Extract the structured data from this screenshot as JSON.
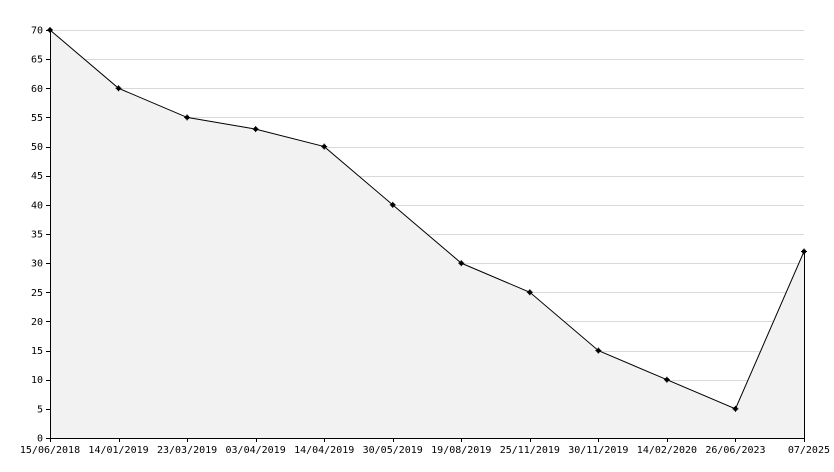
{
  "chart_data": {
    "type": "area",
    "title": "",
    "xlabel": "",
    "ylabel": "",
    "categories": [
      "15/06/2018",
      "14/01/2019",
      "23/03/2019",
      "03/04/2019",
      "14/04/2019",
      "30/05/2019",
      "19/08/2019",
      "25/11/2019",
      "30/11/2019",
      "14/02/2020",
      "26/06/2023",
      "07/2025"
    ],
    "values": [
      70,
      60,
      55,
      53,
      50,
      40,
      30,
      25,
      15,
      10,
      5,
      32
    ],
    "ylim": [
      0,
      70
    ],
    "yticks": [
      0,
      5,
      10,
      15,
      20,
      25,
      30,
      35,
      40,
      45,
      50,
      55,
      60,
      65,
      70
    ],
    "grid": true,
    "colors": {
      "fill": "#f2f2f2",
      "line": "#000000",
      "grid": "#d9d9d9",
      "axis": "#000000"
    }
  }
}
